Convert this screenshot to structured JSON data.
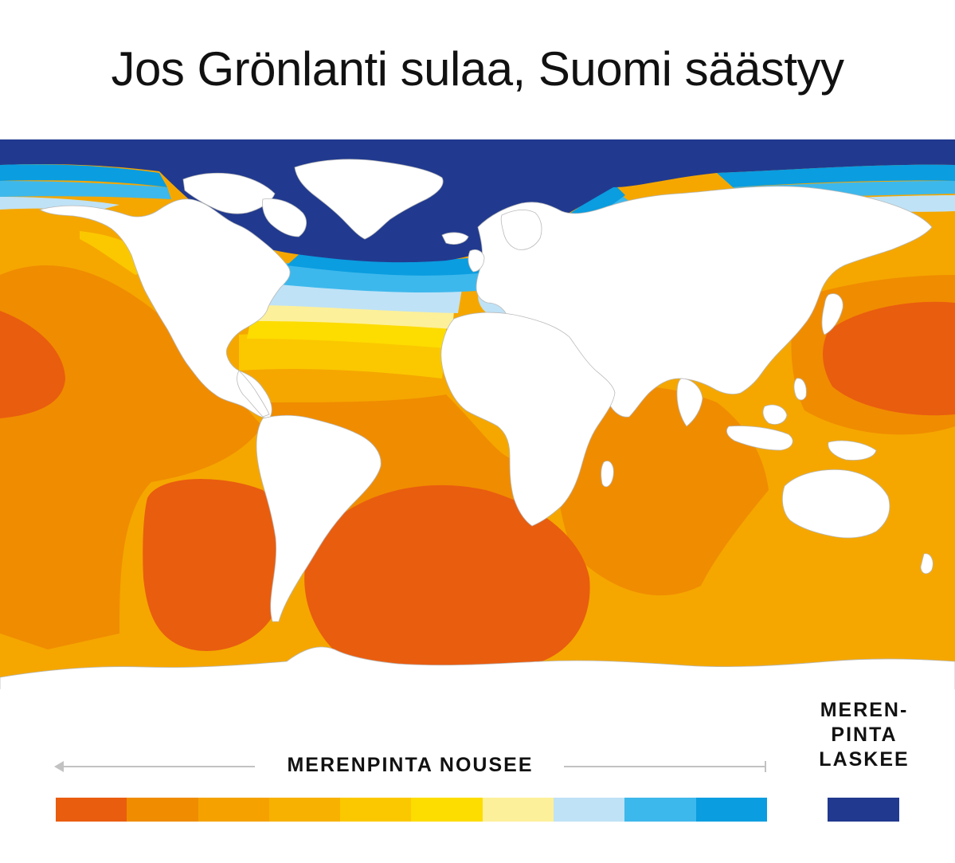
{
  "title": "Jos Grönlanti sulaa, Suomi säästyy",
  "legend": {
    "rise_label": "MERENPINTA NOUSEE",
    "fall_label_lines": [
      "MEREN-",
      "PINTA",
      "LASKEE"
    ],
    "rise_scale_colors": [
      "#e95d0f",
      "#f08c00",
      "#f5a200",
      "#f7b100",
      "#fbc800",
      "#fddc00",
      "#fdf09a",
      "#bfe2f6",
      "#3db8ec",
      "#0a9de0"
    ],
    "fall_color": "#213a8f"
  },
  "colors": {
    "ocean_base": "#f5a700",
    "land": "#ffffff"
  }
}
